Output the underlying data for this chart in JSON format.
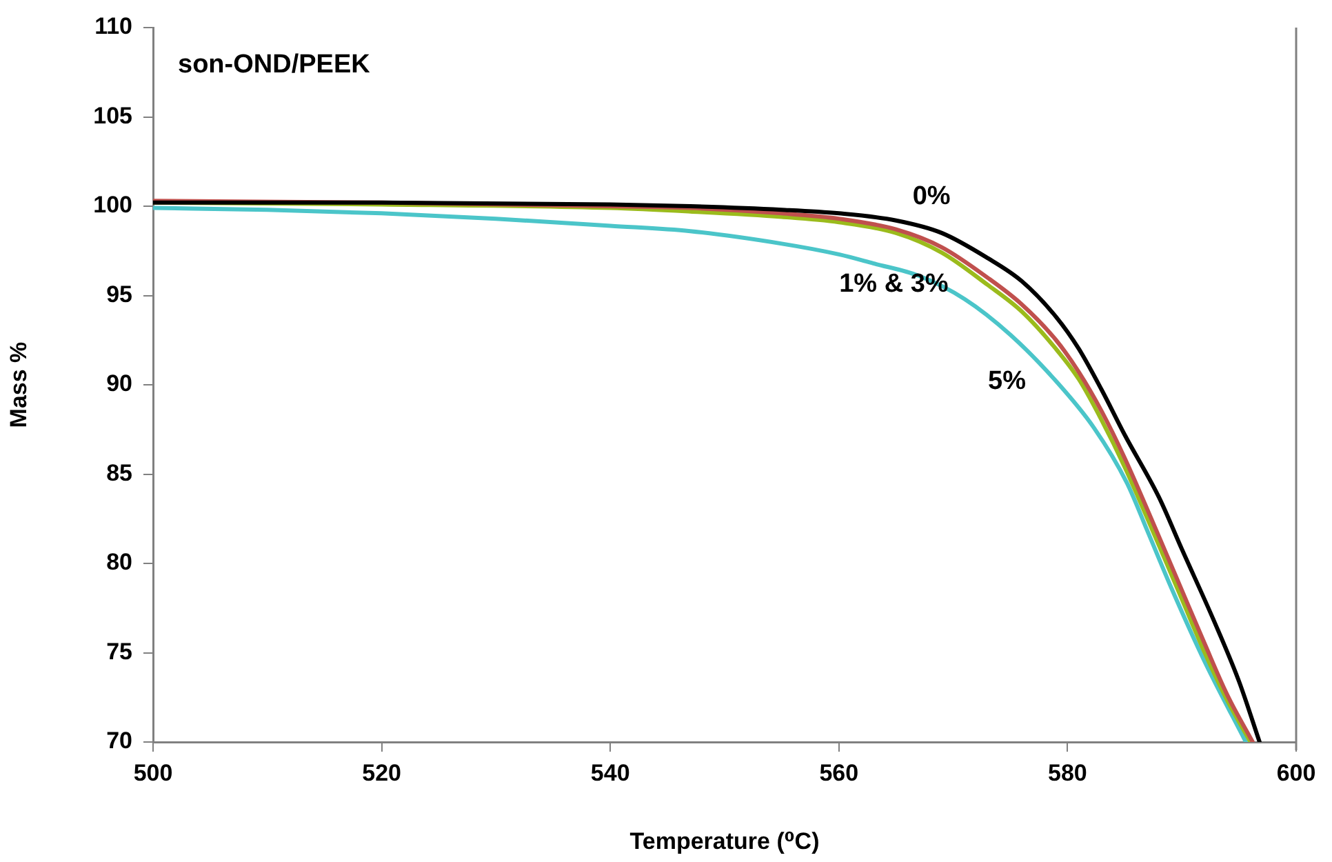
{
  "chart_data": {
    "type": "line",
    "title": "son-OND/PEEK",
    "xlabel": "Temperature (⁰C)",
    "ylabel": "Mass %",
    "xlim": [
      500,
      600
    ],
    "xticks": [
      500,
      520,
      540,
      560,
      580,
      600
    ],
    "ylim": [
      70,
      110
    ],
    "yticks": [
      70,
      75,
      80,
      85,
      90,
      95,
      100,
      105,
      110
    ],
    "grid": false,
    "legend": false,
    "marker": "none",
    "line_style": "solid",
    "series": [
      {
        "color": "#000000",
        "x": [
          500,
          520,
          540,
          547,
          555,
          560,
          565,
          569,
          573,
          576,
          579,
          581,
          583,
          585,
          588,
          590,
          592.8,
          595,
          596.8
        ],
        "values": [
          100.2,
          100.2,
          100.1,
          100,
          99.8,
          99.6,
          99.2,
          98.5,
          97.1,
          95.8,
          93.8,
          92,
          89.7,
          87.2,
          83.7,
          80.8,
          76.8,
          73.4,
          70
        ]
      },
      {
        "color": "#c0504d",
        "x": [
          500,
          520,
          540,
          547,
          555,
          560,
          565,
          569,
          573,
          576,
          579,
          581,
          583,
          585,
          588,
          590,
          592,
          594,
          596.2
        ],
        "values": [
          100.3,
          100.2,
          100,
          99.9,
          99.6,
          99.3,
          98.7,
          97.7,
          96,
          94.5,
          92.5,
          90.7,
          88.5,
          85.9,
          81.5,
          78.5,
          75.5,
          72.6,
          70
        ]
      },
      {
        "color": "#9bbb1c",
        "x": [
          500,
          520,
          540,
          547,
          555,
          560,
          565,
          569,
          573,
          576,
          579,
          581,
          583,
          585,
          588,
          590,
          592,
          594,
          596
        ],
        "values": [
          100.2,
          100.1,
          99.9,
          99.7,
          99.4,
          99.1,
          98.5,
          97.4,
          95.6,
          94.1,
          92,
          90.3,
          88,
          85.4,
          81,
          78,
          75,
          72.3,
          70
        ]
      },
      {
        "color": "#4bc5c9",
        "x": [
          500,
          510,
          520,
          530,
          540,
          547,
          555,
          560,
          563,
          567,
          571,
          575,
          579,
          582.3,
          585.2,
          587,
          589.1,
          592,
          595.6
        ],
        "values": [
          99.9,
          99.8,
          99.6,
          99.3,
          98.9,
          98.6,
          97.9,
          97.3,
          96.8,
          96.1,
          94.8,
          92.8,
          90.2,
          87.6,
          84.5,
          81.8,
          78.6,
          74.5,
          70
        ]
      }
    ],
    "annotations": [
      "0%",
      "1% & 3%",
      "5%"
    ]
  }
}
